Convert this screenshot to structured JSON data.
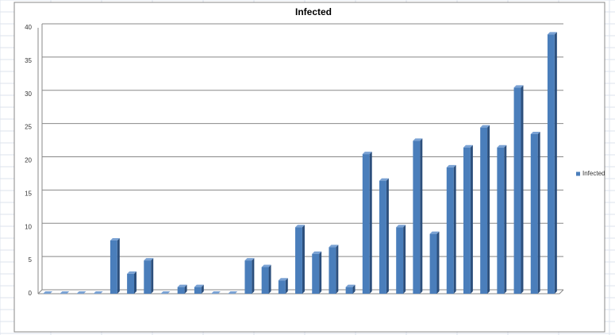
{
  "chart_data": {
    "type": "bar",
    "title": "Infected",
    "categories": [
      null,
      null,
      null,
      null,
      null,
      null,
      null,
      null,
      null,
      null,
      null,
      null,
      null,
      null,
      null,
      null,
      null,
      null,
      null,
      null,
      null,
      null,
      null,
      null,
      null,
      null,
      null,
      null,
      null,
      null,
      null
    ],
    "series": [
      {
        "name": "Infected",
        "color": "#4a7ebb",
        "values": [
          0,
          0,
          0,
          0,
          8,
          3,
          5,
          0,
          1,
          1,
          0,
          0,
          5,
          4,
          2,
          10,
          6,
          7,
          1,
          21,
          17,
          10,
          23,
          9,
          19,
          22,
          25,
          22,
          31,
          24,
          39
        ]
      }
    ],
    "ylim": [
      0,
      40
    ],
    "yticks": [
      0,
      5,
      10,
      15,
      20,
      25,
      30,
      35,
      40
    ],
    "grid": true,
    "legend": "right"
  }
}
